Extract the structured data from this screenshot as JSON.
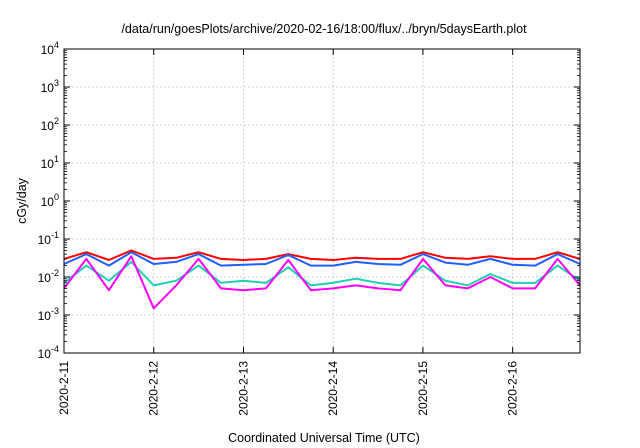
{
  "chart_data": {
    "type": "line",
    "title": "/data/run/goesPlots/archive/2020-02-16/18:00/flux/../bryn/5daysEarth.plot",
    "xlabel": "Coordinated Universal Time (UTC)",
    "ylabel": "cGy/day",
    "yscale": "log",
    "ylim": [
      0.0001,
      10000
    ],
    "xlim": [
      "2020-02-11T00:00",
      "2020-02-16T18:00"
    ],
    "grid": true,
    "legend": "none",
    "x_ticks": [
      "2020-2-11",
      "2020-2-12",
      "2020-2-13",
      "2020-2-14",
      "2020-2-15",
      "2020-2-16"
    ],
    "y_ticks": [
      {
        "base": "10",
        "exp": "-4"
      },
      {
        "base": "10",
        "exp": "-3"
      },
      {
        "base": "10",
        "exp": "-2"
      },
      {
        "base": "10",
        "exp": "-1"
      },
      {
        "base": "10",
        "exp": "0"
      },
      {
        "base": "10",
        "exp": "1"
      },
      {
        "base": "10",
        "exp": "2"
      },
      {
        "base": "10",
        "exp": "3"
      },
      {
        "base": "10",
        "exp": "4"
      }
    ],
    "series": [
      {
        "color": "#ff0000",
        "values": [
          0.03,
          0.045,
          0.028,
          0.05,
          0.03,
          0.032,
          0.045,
          0.03,
          0.028,
          0.03,
          0.04,
          0.03,
          0.028,
          0.032,
          0.03,
          0.03,
          0.045,
          0.032,
          0.03,
          0.035,
          0.03,
          0.03,
          0.045,
          0.03
        ]
      },
      {
        "color": "#1f5fff",
        "values": [
          0.022,
          0.04,
          0.02,
          0.045,
          0.022,
          0.025,
          0.04,
          0.02,
          0.021,
          0.022,
          0.038,
          0.02,
          0.02,
          0.025,
          0.022,
          0.021,
          0.04,
          0.024,
          0.021,
          0.03,
          0.021,
          0.02,
          0.04,
          0.022
        ]
      },
      {
        "color": "#20d0b0",
        "values": [
          0.007,
          0.02,
          0.008,
          0.025,
          0.006,
          0.008,
          0.02,
          0.007,
          0.008,
          0.007,
          0.018,
          0.006,
          0.007,
          0.009,
          0.007,
          0.006,
          0.02,
          0.008,
          0.006,
          0.012,
          0.007,
          0.007,
          0.02,
          0.008
        ]
      },
      {
        "color": "#ff00ff",
        "values": [
          0.005,
          0.03,
          0.0045,
          0.035,
          0.0015,
          0.006,
          0.03,
          0.005,
          0.0045,
          0.005,
          0.028,
          0.0045,
          0.005,
          0.006,
          0.005,
          0.0045,
          0.03,
          0.006,
          0.005,
          0.01,
          0.005,
          0.005,
          0.03,
          0.006
        ]
      }
    ]
  }
}
